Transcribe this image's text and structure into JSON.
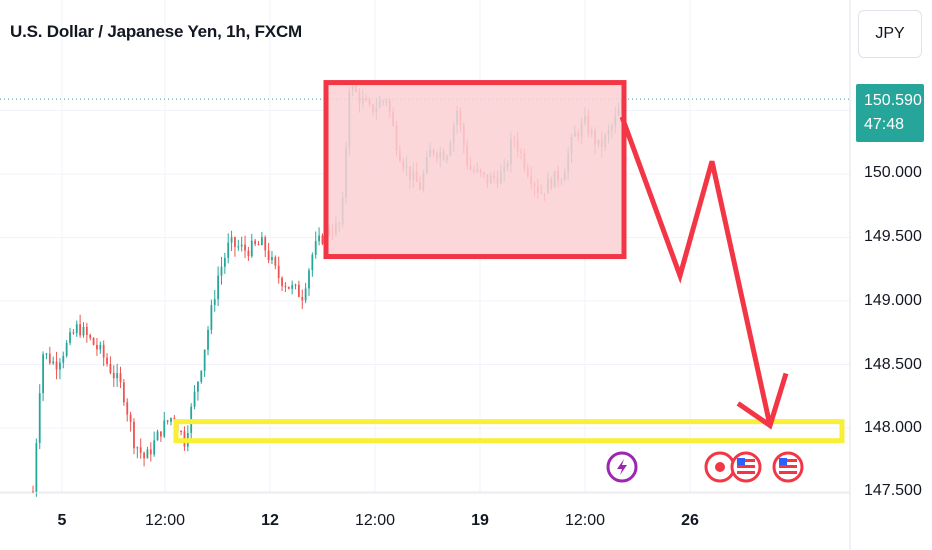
{
  "title": "U.S. Dollar / Japanese Yen, 1h, FXCM",
  "currency_button": "JPY",
  "last_price": {
    "value": "150.590",
    "countdown": "47:48",
    "color": "#26a69a"
  },
  "colors": {
    "up": "#26a69a",
    "down": "#ef5350",
    "annotation_red": "#f23645",
    "zone_fill": "#fbd0d4",
    "annotation_yellow": "#f9ef36",
    "grid": "#f0f3fa"
  },
  "icons": [
    "lightning-event-icon",
    "japan-flag-event-icon",
    "us-flag-event-icon",
    "us-flag-event-icon"
  ],
  "chart_data": {
    "type": "candlestick",
    "symbol": "USDJPY",
    "timeframe": "1h",
    "source": "FXCM",
    "ylim": [
      147.5,
      150.9
    ],
    "y_ticks": [
      "150.000",
      "149.500",
      "149.000",
      "148.500",
      "148.000",
      "147.500"
    ],
    "x_ticks": [
      {
        "label": "5",
        "bold": true
      },
      {
        "label": "12:00",
        "bold": false
      },
      {
        "label": "12",
        "bold": true
      },
      {
        "label": "12:00",
        "bold": false
      },
      {
        "label": "19",
        "bold": true
      },
      {
        "label": "12:00",
        "bold": false
      },
      {
        "label": "26",
        "bold": true
      }
    ],
    "price_path": [
      [
        0,
        147.5
      ],
      [
        8,
        148.6
      ],
      [
        20,
        148.5
      ],
      [
        40,
        148.8
      ],
      [
        60,
        148.6
      ],
      [
        80,
        148.3
      ],
      [
        90,
        147.9
      ],
      [
        100,
        147.75
      ],
      [
        115,
        148.0
      ],
      [
        125,
        148.1
      ],
      [
        135,
        147.9
      ],
      [
        150,
        148.5
      ],
      [
        165,
        149.2
      ],
      [
        175,
        149.45
      ],
      [
        190,
        149.4
      ],
      [
        205,
        149.45
      ],
      [
        218,
        149.2
      ],
      [
        230,
        149.1
      ],
      [
        240,
        149.05
      ],
      [
        250,
        149.4
      ],
      [
        262,
        149.55
      ],
      [
        275,
        149.6
      ],
      [
        282,
        150.7
      ],
      [
        300,
        150.5
      ],
      [
        315,
        150.6
      ],
      [
        325,
        150.2
      ],
      [
        335,
        150.0
      ],
      [
        345,
        149.9
      ],
      [
        355,
        150.2
      ],
      [
        368,
        150.15
      ],
      [
        378,
        150.5
      ],
      [
        388,
        150.05
      ],
      [
        405,
        149.95
      ],
      [
        420,
        150.0
      ],
      [
        428,
        150.3
      ],
      [
        440,
        150.05
      ],
      [
        452,
        149.85
      ],
      [
        462,
        149.95
      ],
      [
        472,
        150.0
      ],
      [
        482,
        150.3
      ],
      [
        492,
        150.4
      ],
      [
        505,
        150.2
      ],
      [
        515,
        150.35
      ],
      [
        525,
        150.55
      ]
    ],
    "resistance_zone": {
      "price_top": 150.72,
      "price_bottom": 149.35,
      "color": "#f23645"
    },
    "support_zone": {
      "price_top": 148.05,
      "price_bottom": 147.9,
      "color": "#f9ef36"
    },
    "projection_path": [
      [
        150.45
      ],
      [
        149.2
      ],
      [
        150.1
      ],
      [
        148.02
      ]
    ]
  }
}
